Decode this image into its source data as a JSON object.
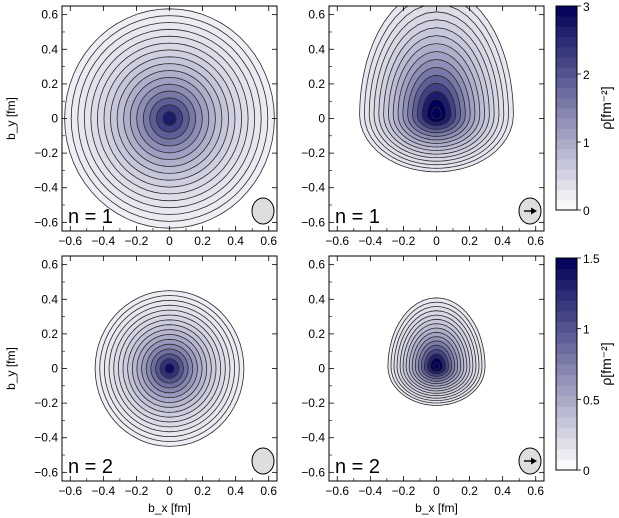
{
  "chart_data": {
    "type": "contour",
    "panels": [
      {
        "id": "p1",
        "label": "n = 1",
        "polarized": false,
        "ylabel": "b_y [fm]",
        "xlabel": "",
        "colorbar": 0,
        "xlim": [
          -0.65,
          0.65
        ],
        "ylim": [
          -0.65,
          0.65
        ],
        "peak": 3.2,
        "decay": [
          4.4,
          4.4,
          4.4,
          4.4
        ],
        "center": [
          0.0,
          0.0
        ],
        "n_levels": 16
      },
      {
        "id": "p2",
        "label": "n = 1",
        "polarized": true,
        "ylabel": "",
        "xlabel": "",
        "colorbar": 0,
        "xlim": [
          -0.65,
          0.65
        ],
        "ylim": [
          -0.65,
          0.65
        ],
        "peak": 4.5,
        "decay": [
          6.0,
          6.0,
          3.8,
          8.5
        ],
        "center": [
          0.0,
          0.02
        ],
        "n_levels": 16
      },
      {
        "id": "p3",
        "label": "n = 2",
        "polarized": false,
        "ylabel": "b_y [fm]",
        "xlabel": "b_x [fm]",
        "colorbar": 1,
        "xlim": [
          -0.65,
          0.65
        ],
        "ylim": [
          -0.65,
          0.65
        ],
        "peak": 1.7,
        "decay": [
          6.2,
          6.2,
          6.2,
          6.2
        ],
        "center": [
          0.0,
          0.0
        ],
        "n_levels": 16
      },
      {
        "id": "p4",
        "label": "n = 2",
        "polarized": true,
        "ylabel": "",
        "xlabel": "b_x [fm]",
        "colorbar": 1,
        "xlim": [
          -0.65,
          0.65
        ],
        "ylim": [
          -0.65,
          0.65
        ],
        "peak": 2.2,
        "decay": [
          9.5,
          9.5,
          7.0,
          12.5
        ],
        "center": [
          0.0,
          0.01
        ],
        "n_levels": 16
      }
    ],
    "ticks": [
      -0.6,
      -0.4,
      -0.2,
      0,
      0.2,
      0.4,
      0.6
    ],
    "tick_labels": [
      "−0.6",
      "−0.4",
      "−0.2",
      "0",
      "0.2",
      "0.4",
      "0.6"
    ],
    "colorbars": [
      {
        "label": "ρ[fm⁻²]",
        "min": 0,
        "max": 3,
        "ticks": [
          0,
          1,
          2,
          3
        ],
        "tick_labels": [
          "0",
          "1",
          "2",
          "3"
        ],
        "bands": 20
      },
      {
        "label": "ρ[fm⁻²]",
        "min": 0,
        "max": 1.5,
        "ticks": [
          0,
          0.5,
          1,
          1.5
        ],
        "tick_labels": [
          "0",
          "0.5",
          "1",
          "1.5"
        ],
        "bands": 20
      }
    ],
    "colors": {
      "low": "#ffffff",
      "high": "#00005a",
      "line": "#2a2a2a",
      "badge": "#dedede"
    },
    "grid": false
  }
}
